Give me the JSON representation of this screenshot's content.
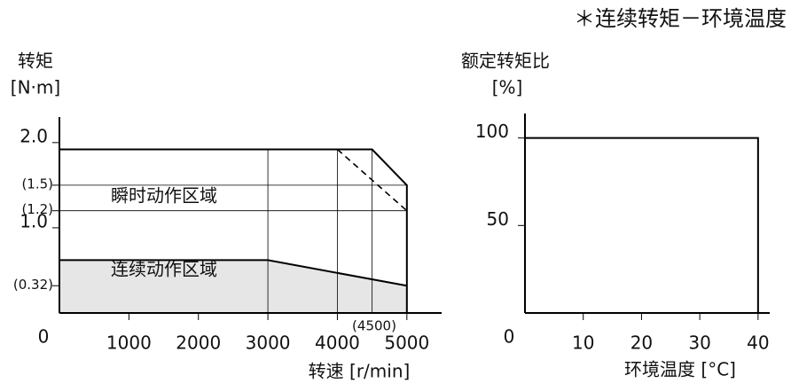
{
  "header": "＊连续转矩－环境温度",
  "chart_data": [
    {
      "type": "line",
      "ylabel": [
        "转矩",
        "[N·m]"
      ],
      "xlabel": "转速 [r/min]",
      "xlim": [
        0,
        5500
      ],
      "ylim": [
        0,
        2.3
      ],
      "xticks": [
        0,
        1000,
        2000,
        3000,
        4000,
        5000
      ],
      "yticks": [
        {
          "value": 2,
          "label": "2.0"
        },
        {
          "value": 1.5,
          "label": "(1.5)"
        },
        {
          "value": 1.2,
          "label": "(1.2)"
        },
        {
          "value": 1,
          "label": "1.0"
        },
        {
          "value": 0.32,
          "label": "(0.32)"
        }
      ],
      "hgrid": [
        1.5,
        1.2
      ],
      "vgrid": [
        3000,
        4000,
        4500
      ],
      "annotations": [
        "瞬时动作区域",
        "连续动作区域",
        "(4500)"
      ],
      "series": [
        {
          "x": [
            0,
            4500,
            5000,
            5000
          ],
          "values": [
            1.92,
            1.92,
            1.5,
            0
          ],
          "color": "#000000"
        },
        {
          "x": [
            4000,
            5000
          ],
          "values": [
            1.92,
            1.2
          ],
          "color": "#000000",
          "dash": true
        },
        {
          "x": [
            0,
            3000,
            5000
          ],
          "values": [
            0.62,
            0.62,
            0.32
          ],
          "color": "#000000",
          "fill": "#e6e6e6"
        }
      ]
    },
    {
      "type": "line",
      "ylabel": [
        "额定转矩比",
        "[%]"
      ],
      "xlabel": "环境温度 [°C]",
      "xlim": [
        0,
        42
      ],
      "ylim": [
        0,
        114
      ],
      "xticks": [
        0,
        10,
        20,
        30,
        40
      ],
      "yticks": [
        100,
        50
      ],
      "series": [
        {
          "x": [
            0,
            40,
            40
          ],
          "values": [
            100,
            100,
            0
          ],
          "color": "#000000"
        }
      ]
    }
  ]
}
